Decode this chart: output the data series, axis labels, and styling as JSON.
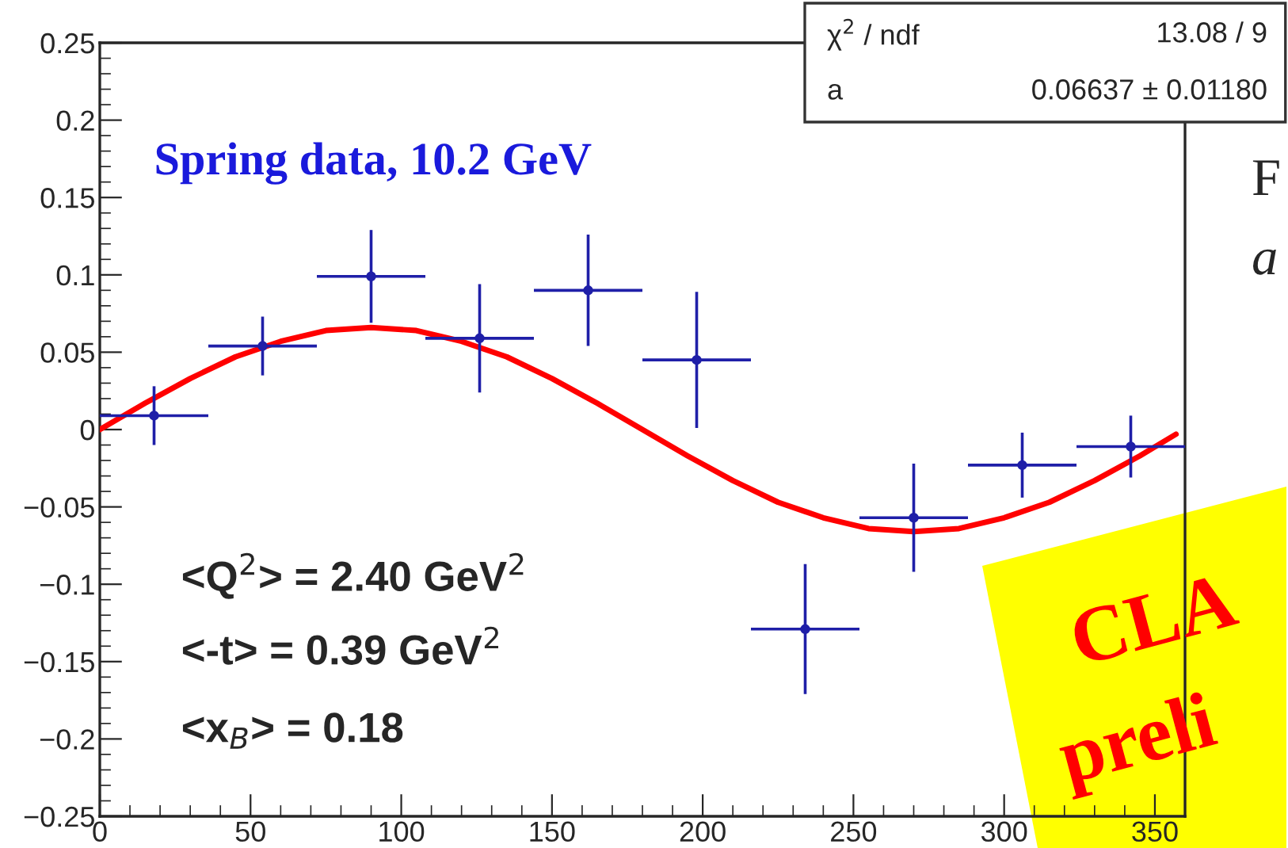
{
  "chart_data": {
    "type": "scatter",
    "annotations": [
      "Spring data, 10.2 GeV",
      "<Q$^{2}$> = 2.40 GeV$^{2}$",
      "<-t> = 0.39 GeV$^{2}$",
      "<x$_{B}$> = 0.18",
      "χ$^{2}$ / ndf",
      "13.08 / 9",
      "a",
      "0.06637 ± 0.01180",
      "CLA",
      "preli",
      "F",
      "a"
    ],
    "series": [
      {
        "color": "#1f1fa8",
        "marker": "circle",
        "x": [
          18,
          54,
          90,
          126,
          162,
          198,
          234,
          270,
          306,
          342
        ],
        "values": [
          0.009,
          0.054,
          0.099,
          0.059,
          0.09,
          0.045,
          -0.129,
          -0.057,
          -0.023,
          -0.011
        ],
        "errors": [
          0.019,
          0.019,
          0.03,
          0.035,
          0.036,
          0.044,
          0.042,
          0.035,
          0.021,
          0.02
        ],
        "xerrors": [
          18,
          18,
          18,
          18,
          18,
          18,
          18,
          18,
          18,
          18
        ]
      },
      {
        "type": "line",
        "color": "#ff0000",
        "x": [
          0,
          15,
          30,
          45,
          60,
          75,
          90,
          105,
          120,
          135,
          150,
          165,
          180,
          195,
          210,
          225,
          240,
          255,
          270,
          285,
          300,
          315,
          330,
          345,
          357
        ],
        "values": [
          0.0,
          0.017,
          0.033,
          0.047,
          0.057,
          0.064,
          0.066,
          0.064,
          0.057,
          0.047,
          0.033,
          0.017,
          0.0,
          -0.017,
          -0.033,
          -0.047,
          -0.057,
          -0.064,
          -0.066,
          -0.064,
          -0.057,
          -0.047,
          -0.033,
          -0.017,
          -0.003
        ]
      }
    ],
    "xlim": [
      0,
      360
    ],
    "ylim": [
      -0.25,
      0.25
    ],
    "xticks": [
      0,
      50,
      100,
      150,
      200,
      250,
      300,
      350
    ],
    "yticks": [
      {
        "value": -0.25,
        "label": "−0.25"
      },
      {
        "value": -0.2,
        "label": "−0.2"
      },
      {
        "value": -0.15,
        "label": "−0.15"
      },
      {
        "value": -0.1,
        "label": "−0.1"
      },
      {
        "value": -0.05,
        "label": "−0.05"
      },
      0,
      0.05,
      0.1,
      0.15,
      0.2,
      0.25
    ],
    "grid": false,
    "legend": false
  }
}
